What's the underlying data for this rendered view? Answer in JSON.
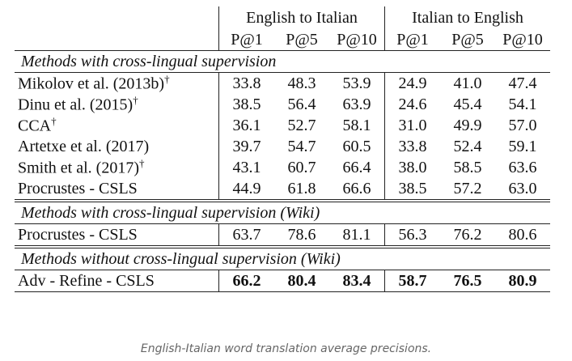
{
  "table": {
    "groups": [
      "English to Italian",
      "Italian to English"
    ],
    "metrics": [
      "P@1",
      "P@5",
      "P@10",
      "P@1",
      "P@5",
      "P@10"
    ],
    "sections": [
      {
        "title": "Methods with cross-lingual supervision",
        "bold": false,
        "rows": [
          {
            "method": "Mikolov et al. (2013b)",
            "note": "†",
            "values": [
              "33.8",
              "48.3",
              "53.9",
              "24.9",
              "41.0",
              "47.4"
            ]
          },
          {
            "method": "Dinu et al. (2015)",
            "note": "†",
            "values": [
              "38.5",
              "56.4",
              "63.9",
              "24.6",
              "45.4",
              "54.1"
            ]
          },
          {
            "method": "CCA",
            "note": "†",
            "values": [
              "36.1",
              "52.7",
              "58.1",
              "31.0",
              "49.9",
              "57.0"
            ]
          },
          {
            "method": "Artetxe et al. (2017)",
            "values": [
              "39.7",
              "54.7",
              "60.5",
              "33.8",
              "52.4",
              "59.1"
            ]
          },
          {
            "method": "Smith et al. (2017)",
            "note": "†",
            "values": [
              "43.1",
              "60.7",
              "66.4",
              "38.0",
              "58.5",
              "63.6"
            ]
          },
          {
            "method": "Procrustes - CSLS",
            "values": [
              "44.9",
              "61.8",
              "66.6",
              "38.5",
              "57.2",
              "63.0"
            ]
          }
        ]
      },
      {
        "title": "Methods with cross-lingual supervision (Wiki)",
        "bold": false,
        "rows": [
          {
            "method": "Procrustes - CSLS",
            "values": [
              "63.7",
              "78.6",
              "81.1",
              "56.3",
              "76.2",
              "80.6"
            ]
          }
        ]
      },
      {
        "title": "Methods without cross-lingual supervision (Wiki)",
        "bold": true,
        "rows": [
          {
            "method": "Adv - Refine - CSLS",
            "values": [
              "66.2",
              "80.4",
              "83.4",
              "58.7",
              "76.5",
              "80.9"
            ]
          }
        ]
      }
    ]
  },
  "caption": "English-Italian word translation average precisions."
}
